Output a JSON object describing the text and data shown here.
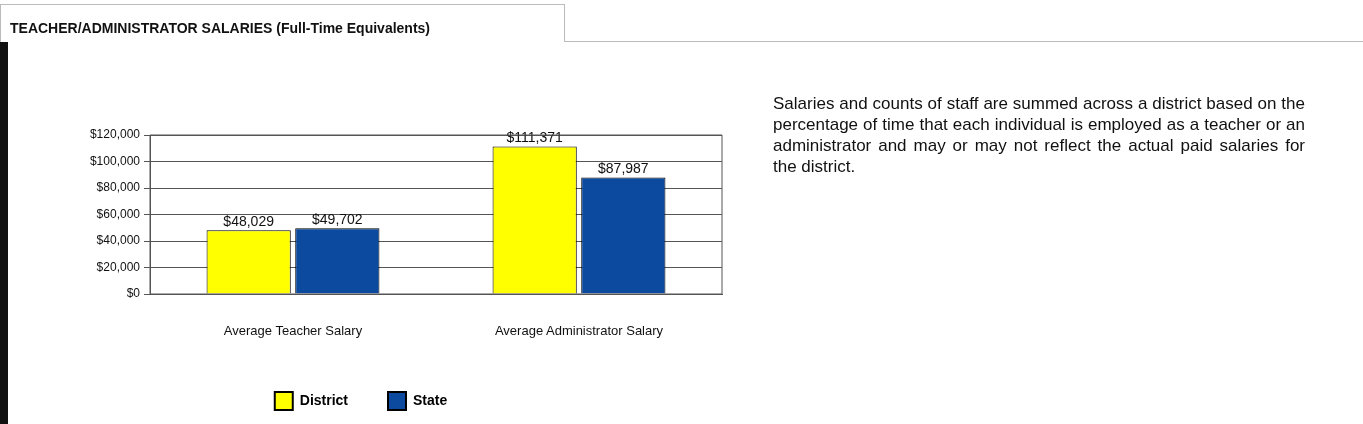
{
  "chart_data": {
    "type": "bar",
    "title": "TEACHER/ADMINISTRATOR SALARIES (Full-Time Equivalents)",
    "categories": [
      "Average Teacher Salary",
      "Average Administrator Salary"
    ],
    "series": [
      {
        "name": "District",
        "color": "#ffff00",
        "values": [
          48029,
          111371
        ],
        "value_labels": [
          "$48,029",
          "$111,371"
        ]
      },
      {
        "name": "State",
        "color": "#0b4a9e",
        "values": [
          49702,
          87987
        ],
        "value_labels": [
          "$49,702",
          "$87,987"
        ]
      }
    ],
    "ylim": [
      0,
      120000
    ],
    "yticks": [
      {
        "value": 0,
        "label": "$0"
      },
      {
        "value": 20000,
        "label": "$20,000"
      },
      {
        "value": 40000,
        "label": "$40,000"
      },
      {
        "value": 60000,
        "label": "$60,000"
      },
      {
        "value": 80000,
        "label": "$80,000"
      },
      {
        "value": 100000,
        "label": "$100,000"
      },
      {
        "value": 120000,
        "label": "$120,000"
      }
    ],
    "grid": "y",
    "legend": "bottom",
    "annotations": [
      "Salaries and counts of staff are summed across a district based on the percentage of time that each individual is employed as a teacher or an administrator and may or may not reflect the actual paid salaries for the district."
    ]
  }
}
